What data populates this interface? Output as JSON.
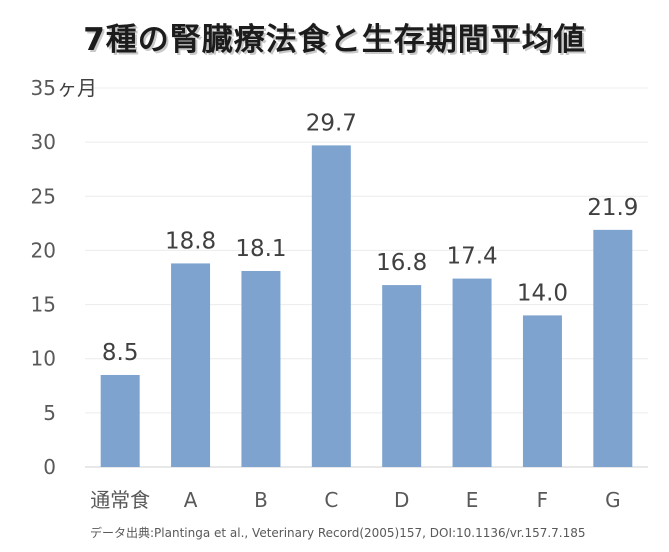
{
  "chart_data": {
    "type": "bar",
    "title": "7種の腎臓療法食と生存期間平均値",
    "ylabel_unit": "ヶ月",
    "categories": [
      "通常食",
      "A",
      "B",
      "C",
      "D",
      "E",
      "F",
      "G"
    ],
    "series": [
      {
        "values": [
          8.5,
          18.8,
          18.1,
          29.7,
          16.8,
          17.4,
          14.0,
          21.9
        ]
      }
    ],
    "data_labels": [
      "8.5",
      "18.8",
      "18.1",
      "29.7",
      "16.8",
      "17.4",
      "14.0",
      "21.9"
    ],
    "y_ticks": [
      0,
      5,
      10,
      15,
      20,
      25,
      30,
      35
    ],
    "ylim": [
      0,
      35
    ],
    "grid": true,
    "bar_color": "#7ea3cf",
    "source": "データ出典:Plantinga et al., Veterinary Record(2005)157, DOI:10.1136/vr.157.7.185"
  }
}
